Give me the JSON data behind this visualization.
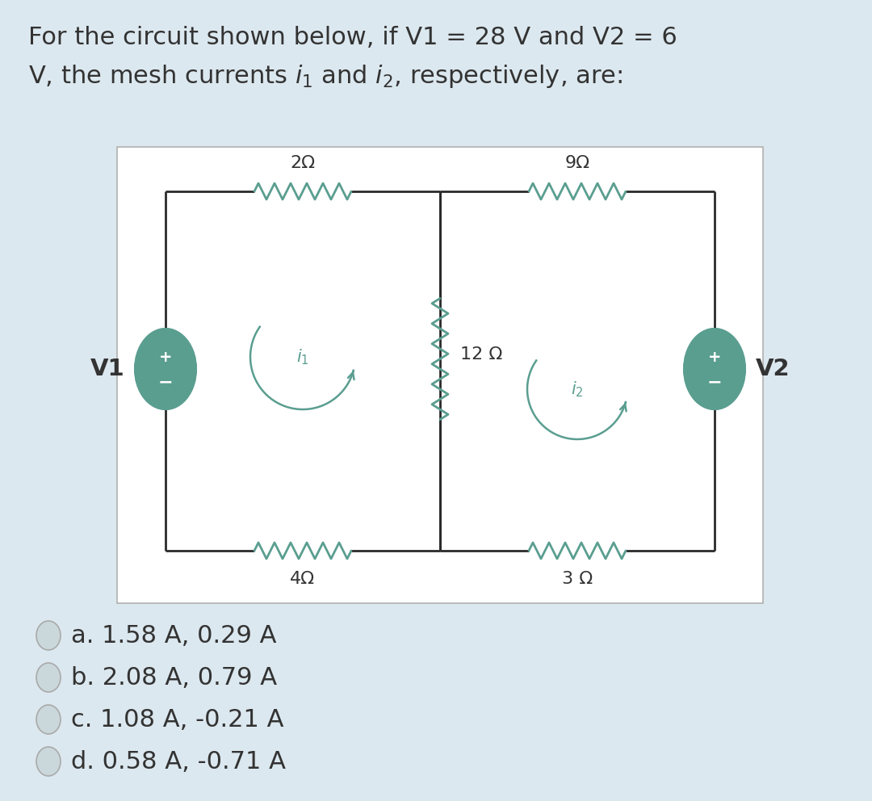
{
  "bg_color": "#dce8ef",
  "circuit_bg": "#f5f5f5",
  "teal_color": "#5a9e90",
  "wire_color": "#2a2a2a",
  "label_color": "#333333",
  "title_line1": "For the circuit shown below, if V1 = 28 V and V2 = 6",
  "title_line2_pre": "V, the mesh currents ",
  "title_line2_post": ", respectively, are:",
  "choices": [
    "a. 1.58 A, 0.29 A",
    "b. 2.08 A, 0.79 A",
    "c. 1.08 A, -0.21 A",
    "d. 0.58 A, -0.71 A"
  ],
  "R_top_left": "2Ω",
  "R_top_right": "9Ω",
  "R_middle": "12 Ω",
  "R_bot_left": "4Ω",
  "R_bot_right": "3 Ω",
  "label_V1": "V1",
  "label_V2": "V2",
  "title_fontsize": 22,
  "label_fontsize": 16,
  "choice_fontsize": 22
}
